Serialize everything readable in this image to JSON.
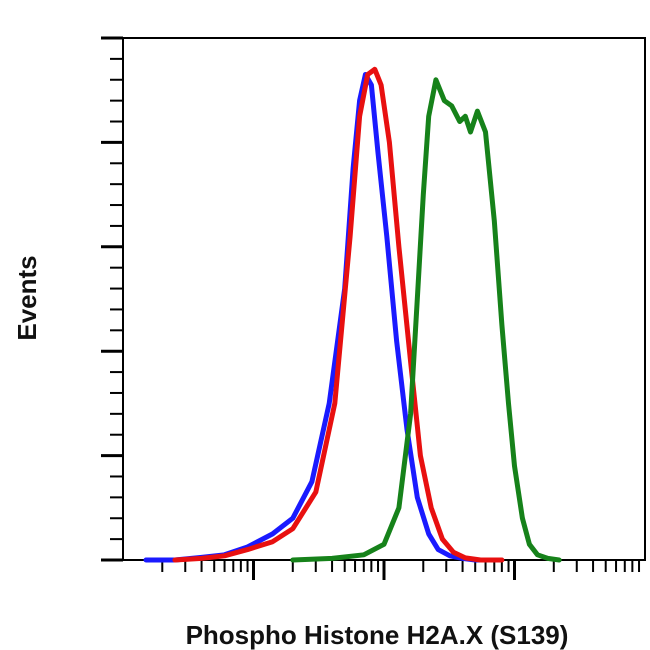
{
  "chart_data": {
    "type": "line",
    "title": "",
    "xlabel": "Phospho Histone H2A.X (S139)",
    "ylabel": "Events",
    "x_scale": "log",
    "xlim": [
      1,
      10000
    ],
    "ylim": [
      0,
      100
    ],
    "grid": false,
    "legend": "none",
    "x_major_ticks": [
      10,
      100,
      1000
    ],
    "y_major_ticks": [
      0,
      20,
      40,
      60,
      80,
      100
    ],
    "series": [
      {
        "color": "#1a1aff",
        "x": [
          1.5,
          2.5,
          4,
          6,
          9,
          14,
          20,
          28,
          38,
          50,
          58,
          65,
          72,
          80,
          90,
          105,
          125,
          150,
          180,
          220,
          260,
          320,
          400,
          500,
          700
        ],
        "y": [
          0,
          0,
          0.5,
          1,
          2.5,
          5,
          8,
          15,
          30,
          52,
          75,
          88,
          93,
          91,
          78,
          62,
          42,
          25,
          12,
          5,
          2,
          0.8,
          0.3,
          0,
          0
        ]
      },
      {
        "color": "#e81010",
        "x": [
          2.5,
          4,
          6,
          9,
          14,
          20,
          30,
          42,
          55,
          65,
          75,
          85,
          95,
          110,
          130,
          160,
          190,
          230,
          280,
          340,
          420,
          550,
          800
        ],
        "y": [
          0,
          0.3,
          0.8,
          2,
          3.5,
          6,
          13,
          30,
          62,
          85,
          93,
          94,
          91,
          80,
          60,
          38,
          20,
          10,
          4,
          1.5,
          0.4,
          0,
          0
        ]
      },
      {
        "color": "#16821a",
        "x": [
          20,
          40,
          70,
          100,
          130,
          160,
          180,
          200,
          220,
          250,
          290,
          330,
          380,
          420,
          460,
          520,
          600,
          700,
          800,
          900,
          1000,
          1150,
          1300,
          1500,
          1800,
          2200
        ],
        "y": [
          0,
          0.3,
          1,
          3,
          10,
          28,
          50,
          70,
          85,
          92,
          88,
          87,
          84,
          85,
          82,
          86,
          82,
          65,
          45,
          30,
          18,
          8,
          3,
          1,
          0.3,
          0
        ]
      }
    ]
  }
}
